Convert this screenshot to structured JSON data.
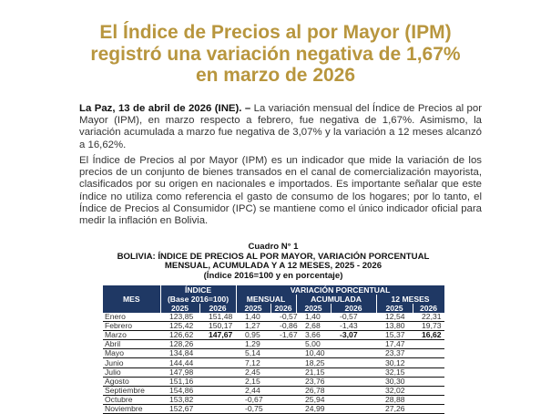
{
  "title": [
    "El Índice de Precios al por Mayor (IPM)",
    "registró una variación negativa de 1,67%",
    "en marzo de 2026"
  ],
  "paragraph1": {
    "lead": "La Paz, 13 de abril de 2026 (INE). –",
    "text": " La variación mensual del Índice de Precios al por Mayor (IPM), en marzo respecto a febrero, fue negativa de 1,67%. Asimismo, la variación acumulada a marzo fue negativa de 3,07% y la variación a 12 meses alcanzó a 16,62%."
  },
  "paragraph2": "El Índice de Precios al por Mayor (IPM) es un indicador que mide la variación de los precios de un conjunto de bienes transados en el canal de comercialización mayorista, clasificados por su origen en nacionales e importados. Es importante señalar que este índice no utiliza como referencia el gasto de consumo de los hogares; por lo tanto, el Índice de Precios al Consumidor (IPC) se mantiene como el único indicador oficial para medir la inflación en Bolivia.",
  "table": {
    "caption": [
      "Cuadro N° 1",
      "BOLIVIA: ÍNDICE DE PRECIOS AL POR MAYOR, VARIACIÓN PORCENTUAL",
      "MENSUAL, ACUMULADA Y A 12 MESES, 2025 - 2026",
      "(Índice 2016=100 y en porcentaje)"
    ],
    "headers": {
      "mes": "MES",
      "indice": "ÍNDICE",
      "base": "(Base 2016=100)",
      "variacion": "VARIACIÓN PORCENTUAL",
      "mensual": "MENSUAL",
      "acumulada": "ACUMULADA",
      "doce": "12 MESES",
      "years": [
        "2025",
        "2026",
        "2025",
        "2026",
        "2025",
        "2026",
        "2025",
        "2026"
      ]
    },
    "rows": [
      [
        "Enero",
        "123,85",
        "151,48",
        "1,40",
        "-0,57",
        "1,40",
        "-0,57",
        "12,54",
        "22,31"
      ],
      [
        "Febrero",
        "125,42",
        "150,17",
        "1,27",
        "-0,86",
        "2,68",
        "-1,43",
        "13,80",
        "19,73"
      ],
      [
        "Marzo",
        "126,62",
        "147,67",
        "0,95",
        "-1,67",
        "3,66",
        "-3,07",
        "15,37",
        "16,62"
      ],
      [
        "Abril",
        "128,26",
        "",
        "1,29",
        "",
        "5,00",
        "",
        "17,47",
        ""
      ],
      [
        "Mayo",
        "134,84",
        "",
        "5,14",
        "",
        "10,40",
        "",
        "23,37",
        ""
      ],
      [
        "Junio",
        "144,44",
        "",
        "7,12",
        "",
        "18,25",
        "",
        "30,12",
        ""
      ],
      [
        "Julio",
        "147,98",
        "",
        "2,45",
        "",
        "21,15",
        "",
        "32,15",
        ""
      ],
      [
        "Agosto",
        "151,16",
        "",
        "2,15",
        "",
        "23,76",
        "",
        "30,30",
        ""
      ],
      [
        "Septiembre",
        "154,86",
        "",
        "2,44",
        "",
        "26,78",
        "",
        "32,02",
        ""
      ],
      [
        "Octubre",
        "153,82",
        "",
        "-0,67",
        "",
        "25,94",
        "",
        "28,88",
        ""
      ],
      [
        "Noviembre",
        "152,67",
        "",
        "-0,75",
        "",
        "24,99",
        "",
        "27,26",
        ""
      ]
    ]
  }
}
